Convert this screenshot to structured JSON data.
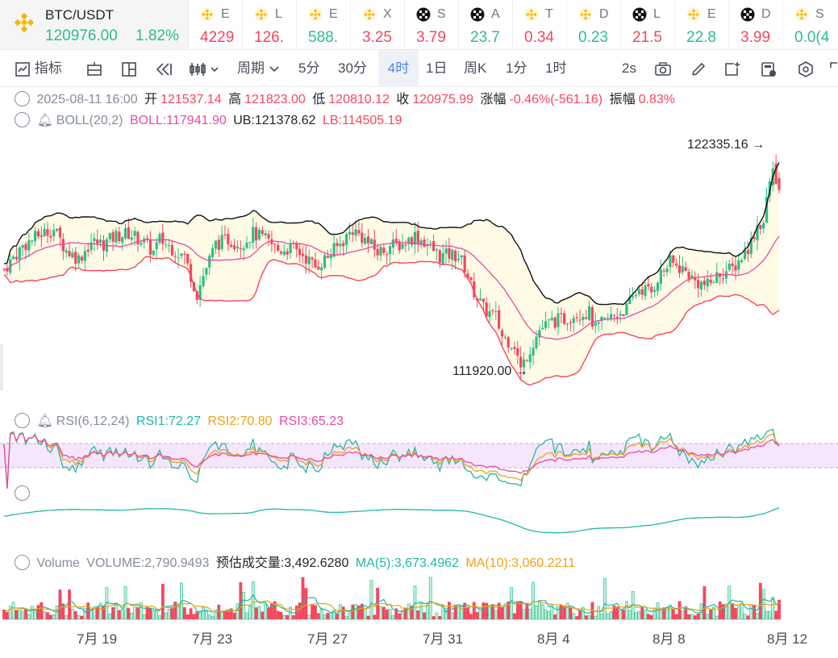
{
  "ticker": {
    "main": {
      "pair": "BTC/USDT",
      "price": "120976.00",
      "change": "1.82%",
      "coin_icon": "binance-diamond-icon"
    },
    "items": [
      {
        "icon": "binance-icon",
        "sym": "E",
        "val": "4229",
        "dir": "down"
      },
      {
        "icon": "binance-icon",
        "sym": "L",
        "val": "126.",
        "dir": "down"
      },
      {
        "icon": "binance-icon",
        "sym": "E",
        "val": "588.",
        "dir": "up"
      },
      {
        "icon": "binance-icon",
        "sym": "X",
        "val": "3.25",
        "dir": "down"
      },
      {
        "icon": "okx-icon",
        "sym": "S",
        "val": "3.79",
        "dir": "down"
      },
      {
        "icon": "okx-icon",
        "sym": "A",
        "val": "23.7",
        "dir": "up"
      },
      {
        "icon": "binance-icon",
        "sym": "T",
        "val": "0.34",
        "dir": "down"
      },
      {
        "icon": "binance-icon",
        "sym": "D",
        "val": "0.23",
        "dir": "up"
      },
      {
        "icon": "okx-icon",
        "sym": "L",
        "val": "21.5",
        "dir": "down"
      },
      {
        "icon": "binance-icon",
        "sym": "E",
        "val": "22.8",
        "dir": "up"
      },
      {
        "icon": "okx-icon",
        "sym": "D",
        "val": "3.99",
        "dir": "down"
      },
      {
        "icon": "binance-icon",
        "sym": "S",
        "val": "0.0(4",
        "dir": "up"
      }
    ]
  },
  "toolbar": {
    "indicators_label": "指标",
    "period_label": "周期",
    "intervals": [
      "5分",
      "30分",
      "4时",
      "1日",
      "周K",
      "1分",
      "1时"
    ],
    "active_interval": "4时",
    "refresh": "2s"
  },
  "ohlc": {
    "date": "2025-08-11 16:00",
    "open_label": "开",
    "open": "121537.14",
    "high_label": "高",
    "high": "121823.00",
    "low_label": "低",
    "low": "120810.12",
    "close_label": "收",
    "close": "120975.99",
    "change_label": "涨幅",
    "change": "-0.46%(-561.16)",
    "amplitude_label": "振幅",
    "amplitude": "0.83%"
  },
  "boll": {
    "name": "BOLL(20,2)",
    "boll": "BOLL:117941.90",
    "ub": "UB:121378.62",
    "lb": "LB:114505.19"
  },
  "rsi": {
    "name": "RSI(6,12,24)",
    "rsi1": "RSI1:72.27",
    "rsi2": "RSI2:70.80",
    "rsi3": "RSI3:65.23"
  },
  "volume": {
    "name": "Volume",
    "volume": "VOLUME:2,790.9493",
    "est": "预估成交量:3,492.6280",
    "ma5": "MA(5):3,673.4962",
    "ma10": "MA(10):3,060.2211"
  },
  "annotations": {
    "high": "122335.16",
    "low": "111920.00"
  },
  "colors": {
    "up": "#2ebd85",
    "down": "#f6465d",
    "mid": "#e84aa4",
    "band": "#111111",
    "lb": "#f6465d",
    "fill": "#fffbe6",
    "rsi1": "#23b7a4",
    "rsi2": "#f0a11a",
    "rsi3": "#e84aa4",
    "accent": "#4b82e8"
  },
  "chart_data": {
    "type": "candlestick",
    "x_tick_labels": [
      "7月 19",
      "7月 23",
      "7月 27",
      "7月 31",
      "8月 4",
      "8月 8",
      "8月 12"
    ],
    "y_range": [
      110800,
      123500
    ],
    "candles": [],
    "band_ub": [],
    "band_lb": [],
    "band_mid": []
  }
}
